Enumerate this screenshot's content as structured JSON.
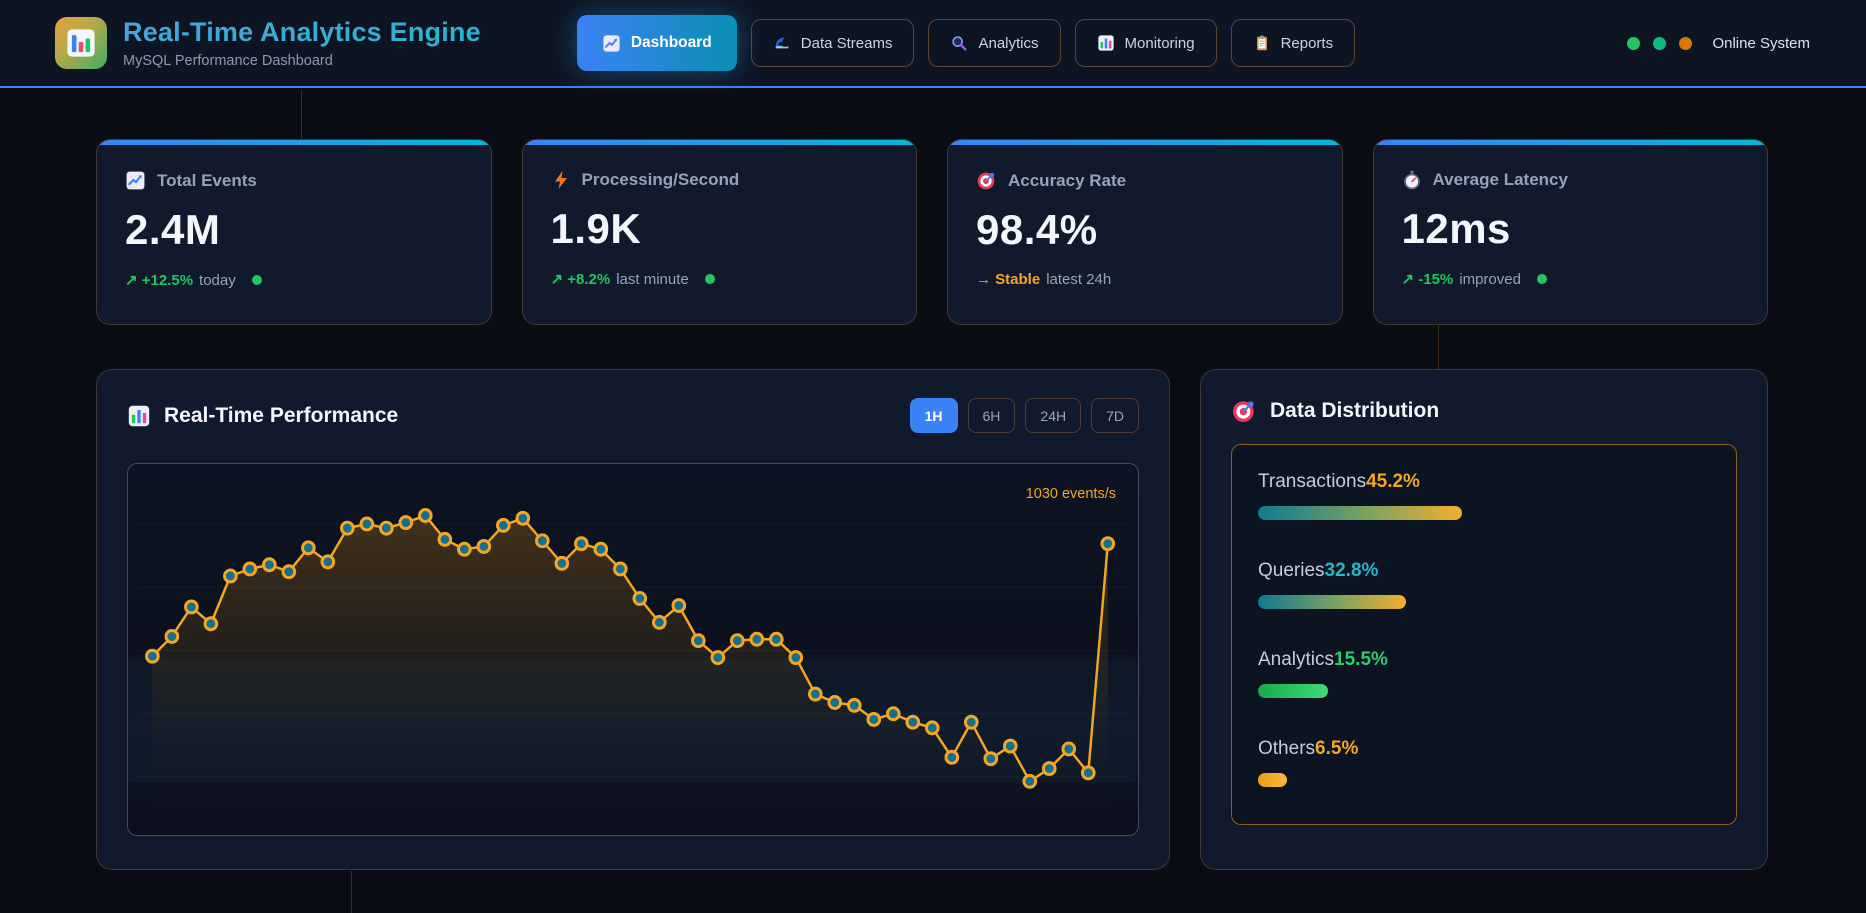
{
  "colors": {
    "accent_blue": "#3b82f6",
    "accent_cyan": "#06b6d4",
    "line_orange": "#f5a623",
    "green": "#22c55e",
    "orange": "#f5a623",
    "teal": "#29b6c8"
  },
  "header": {
    "title": "Real-Time Analytics Engine",
    "subtitle": "MySQL Performance Dashboard",
    "logo_icon": "bar-chart",
    "nav": [
      {
        "label": "Dashboard",
        "icon": "chart-increasing",
        "active": true
      },
      {
        "label": "Data Streams",
        "icon": "water-wave",
        "active": false
      },
      {
        "label": "Analytics",
        "icon": "magnifier",
        "active": false
      },
      {
        "label": "Monitoring",
        "icon": "bar-chart",
        "active": false
      },
      {
        "label": "Reports",
        "icon": "clipboard",
        "active": false
      }
    ],
    "status": {
      "dots": [
        "#22c55e",
        "#10b981",
        "#d97706"
      ],
      "label": "Online System"
    }
  },
  "stats": [
    {
      "icon": "chart-increasing",
      "label": "Total Events",
      "value": "2.4M",
      "change": "↗ +12.5%",
      "change_suffix": "today",
      "change_color": "#22c55e",
      "live_dot": true
    },
    {
      "icon": "lightning",
      "label": "Processing/Second",
      "value": "1.9K",
      "change": "↗ +8.2%",
      "change_suffix": "last minute",
      "change_color": "#22c55e",
      "live_dot": true
    },
    {
      "icon": "target",
      "label": "Accuracy Rate",
      "value": "98.4%",
      "change": "→ Stable",
      "change_suffix": "latest 24h",
      "change_color": "#f5a623",
      "live_dot": false
    },
    {
      "icon": "stopwatch",
      "label": "Average Latency",
      "value": "12ms",
      "change": "↗ -15%",
      "change_suffix": "improved",
      "change_color": "#22c55e",
      "live_dot": true
    }
  ],
  "performance": {
    "title": "Real-Time Performance",
    "icon": "bar-chart",
    "ranges": [
      "1H",
      "6H",
      "24H",
      "7D"
    ],
    "active_range": "1H",
    "current_label": "1030 events/s"
  },
  "chart_data": {
    "type": "line",
    "title": "Real-Time Performance",
    "series_name": "events/s",
    "x_axis": "time (no tick labels shown)",
    "values": [
      630,
      700,
      805,
      745,
      915,
      940,
      955,
      930,
      1015,
      965,
      1085,
      1100,
      1085,
      1105,
      1130,
      1045,
      1010,
      1020,
      1095,
      1120,
      1040,
      960,
      1030,
      1010,
      940,
      835,
      750,
      810,
      685,
      625,
      685,
      690,
      690,
      625,
      495,
      465,
      455,
      405,
      425,
      395,
      375,
      270,
      395,
      265,
      310,
      185,
      230,
      300,
      215,
      1030
    ],
    "ylim": [
      100,
      1200
    ],
    "grid": true,
    "markers": true,
    "line_color": "#f5a623",
    "marker_fill": "#15718a",
    "annotation": "1030 events/s",
    "legend": "none"
  },
  "distribution": {
    "title": "Data Distribution",
    "icon": "target",
    "items": [
      {
        "label": "Transactions",
        "value": "45.2%",
        "pct": 45.2,
        "value_color": "#f5a623",
        "bar_style": "teal-orange"
      },
      {
        "label": "Queries",
        "value": "32.8%",
        "pct": 32.8,
        "value_color": "#29b6c8",
        "bar_style": "teal-orange"
      },
      {
        "label": "Analytics",
        "value": "15.5%",
        "pct": 15.5,
        "value_color": "#2ecc71",
        "bar_style": "green"
      },
      {
        "label": "Others",
        "value": "6.5%",
        "pct": 6.5,
        "value_color": "#f5a623",
        "bar_style": "orange"
      }
    ]
  }
}
